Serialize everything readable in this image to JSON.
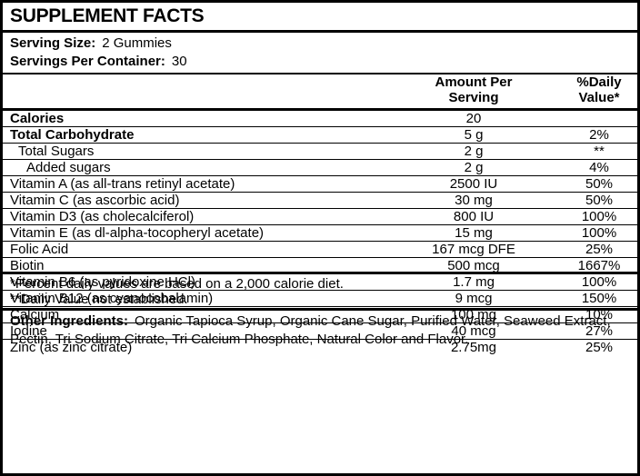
{
  "title": "SUPPLEMENT FACTS",
  "serving": {
    "size_label": "Serving Size:",
    "size_value": "2 Gummies",
    "per_container_label": "Servings Per Container:",
    "per_container_value": "30"
  },
  "table": {
    "amount_header": "Amount Per Serving",
    "dv_header": "%Daily Value*",
    "rows": [
      {
        "name": "Calories",
        "amount": "20",
        "dv": "",
        "bold": true,
        "indent": 0
      },
      {
        "name": "Total Carbohydrate",
        "amount": "5 g",
        "dv": "2%",
        "bold": true,
        "indent": 0
      },
      {
        "name": "Total Sugars",
        "amount": "2 g",
        "dv": "**",
        "bold": false,
        "indent": 1
      },
      {
        "name": "Added sugars",
        "amount": "2 g",
        "dv": "4%",
        "bold": false,
        "indent": 2
      },
      {
        "name": "Vitamin A (as all-trans retinyl acetate)",
        "amount": "2500 IU",
        "dv": "50%",
        "bold": false,
        "indent": 0
      },
      {
        "name": "Vitamin C (as ascorbic acid)",
        "amount": "30 mg",
        "dv": "50%",
        "bold": false,
        "indent": 0
      },
      {
        "name": "Vitamin D3 (as cholecalciferol)",
        "amount": "800 IU",
        "dv": "100%",
        "bold": false,
        "indent": 0
      },
      {
        "name": "Vitamin E (as dl-alpha-tocopheryl acetate)",
        "amount": "15 mg",
        "dv": "100%",
        "bold": false,
        "indent": 0
      },
      {
        "name": "Folic Acid",
        "amount": "167 mcg DFE",
        "dv": "25%",
        "bold": false,
        "indent": 0
      },
      {
        "name": "Biotin",
        "amount": "500 mcg",
        "dv": "1667%",
        "bold": false,
        "indent": 0
      },
      {
        "name": "Vitamin B6 (as pyridoxine HCl)",
        "amount": "1.7 mg",
        "dv": "100%",
        "bold": false,
        "indent": 0
      },
      {
        "name": "Vitamin B12 (as cyanocobalamin)",
        "amount": "9 mcg",
        "dv": "150%",
        "bold": false,
        "indent": 0
      },
      {
        "name": "Calcium",
        "amount": "100 mg",
        "dv": "10%",
        "bold": false,
        "indent": 0
      },
      {
        "name": "Iodine",
        "amount": "40 mcg",
        "dv": "27%",
        "bold": false,
        "indent": 0
      },
      {
        "name": "Zinc (as zinc citrate)",
        "amount": "2.75mg",
        "dv": "25%",
        "bold": false,
        "indent": 0
      }
    ]
  },
  "footnotes": [
    "*Percent daily values are based on a 2,000 calorie diet.",
    "**Daily Value not established."
  ],
  "other_ingredients": {
    "label": "Other Ingredients:",
    "value": "Organic Tapioca Syrup, Organic Cane Sugar, Purified Water, Seaweed Extract, Pectin, Tri Sodium Citrate, Tri Calcium Phosphate, Natural Color and Flavor."
  },
  "colors": {
    "text": "#000000",
    "border": "#000000",
    "background": "#ffffff"
  }
}
